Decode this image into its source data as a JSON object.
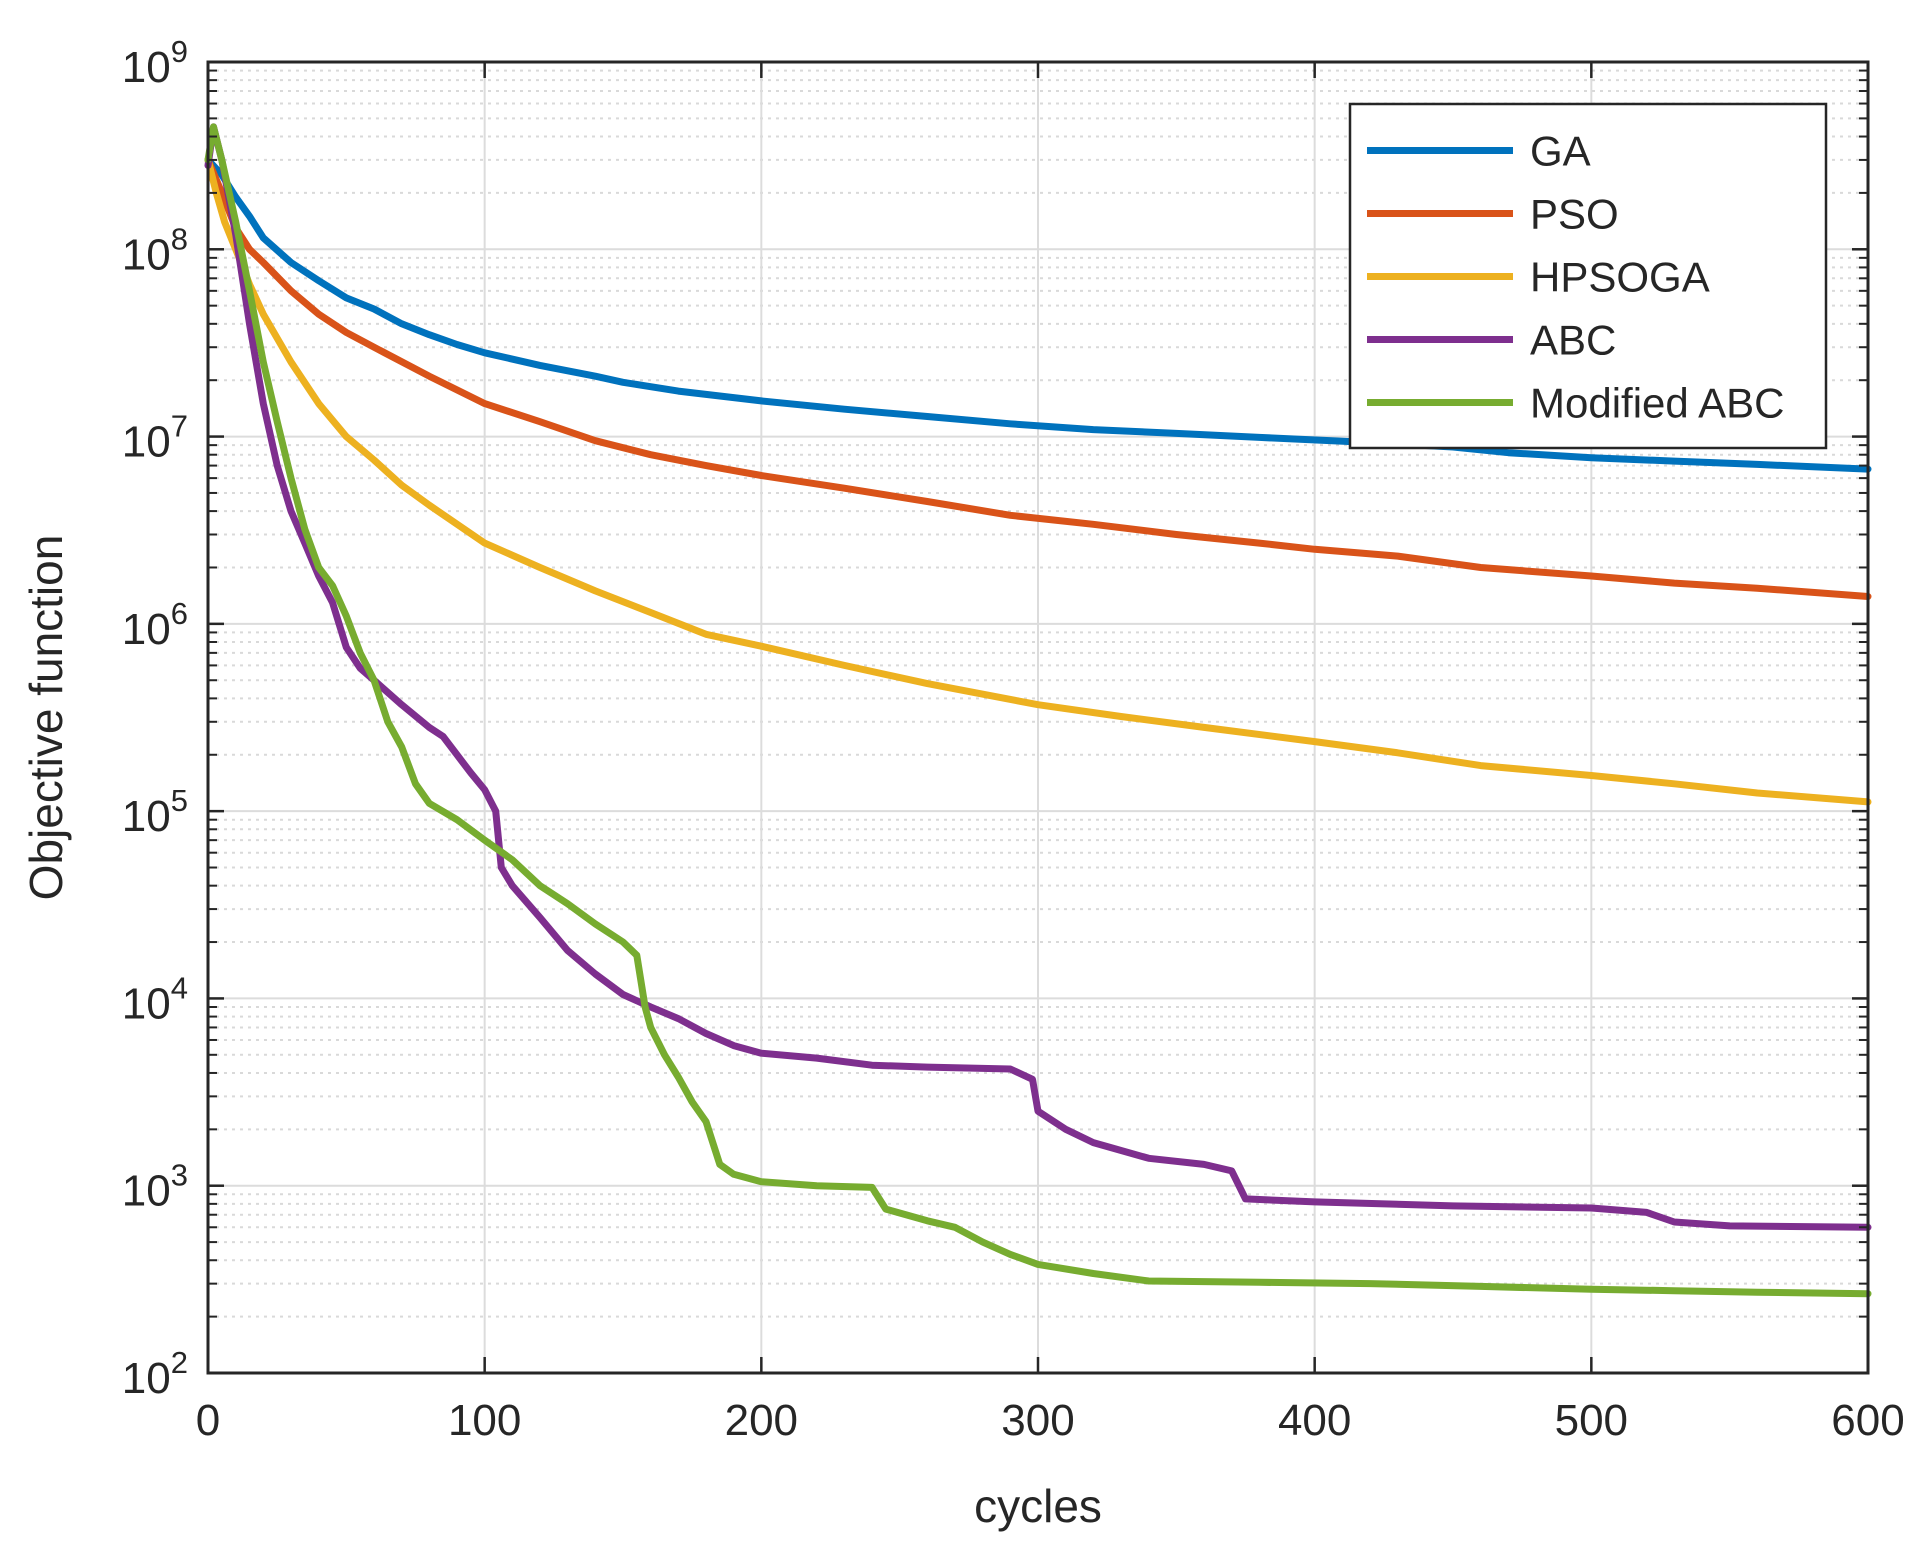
{
  "chart_data": {
    "type": "line",
    "title": "",
    "xlabel": "cycles",
    "ylabel": "Objective function",
    "xlim": [
      0,
      600
    ],
    "ylim": [
      100,
      1000000000
    ],
    "yscale": "log",
    "x_ticks": [
      0,
      100,
      200,
      300,
      400,
      500,
      600
    ],
    "x_tick_labels": [
      "0",
      "100",
      "200",
      "300",
      "400",
      "500",
      "600"
    ],
    "y_ticks": [
      {
        "value": 100,
        "base": "10",
        "exp": "2"
      },
      {
        "value": 1000,
        "base": "10",
        "exp": "3"
      },
      {
        "value": 10000,
        "base": "10",
        "exp": "4"
      },
      {
        "value": 100000,
        "base": "10",
        "exp": "5"
      },
      {
        "value": 1000000,
        "base": "10",
        "exp": "6"
      },
      {
        "value": 10000000,
        "base": "10",
        "exp": "7"
      },
      {
        "value": 100000000,
        "base": "10",
        "exp": "8"
      },
      {
        "value": 1000000000,
        "base": "10",
        "exp": "9"
      }
    ],
    "grid": true,
    "legend_position": "top-right",
    "series": [
      {
        "name": "GA",
        "color": "#0072BD",
        "points": [
          [
            0,
            300000000
          ],
          [
            5,
            250000000
          ],
          [
            10,
            190000000
          ],
          [
            15,
            150000000
          ],
          [
            20,
            115000000
          ],
          [
            30,
            85000000
          ],
          [
            40,
            68000000
          ],
          [
            50,
            55000000
          ],
          [
            60,
            48000000
          ],
          [
            70,
            40000000
          ],
          [
            80,
            35000000
          ],
          [
            90,
            31000000
          ],
          [
            100,
            28000000
          ],
          [
            120,
            24000000
          ],
          [
            140,
            21000000
          ],
          [
            150,
            19500000
          ],
          [
            170,
            17500000
          ],
          [
            200,
            15500000
          ],
          [
            230,
            14000000
          ],
          [
            260,
            12800000
          ],
          [
            290,
            11700000
          ],
          [
            320,
            10900000
          ],
          [
            350,
            10400000
          ],
          [
            380,
            9900000
          ],
          [
            420,
            9300000
          ],
          [
            450,
            8800000
          ],
          [
            470,
            8200000
          ],
          [
            500,
            7700000
          ],
          [
            530,
            7400000
          ],
          [
            560,
            7100000
          ],
          [
            600,
            6700000
          ]
        ]
      },
      {
        "name": "PSO",
        "color": "#D95319",
        "points": [
          [
            0,
            300000000
          ],
          [
            5,
            200000000
          ],
          [
            10,
            130000000
          ],
          [
            15,
            100000000
          ],
          [
            20,
            85000000
          ],
          [
            30,
            60000000
          ],
          [
            40,
            45000000
          ],
          [
            50,
            36000000
          ],
          [
            60,
            30000000
          ],
          [
            80,
            21000000
          ],
          [
            100,
            15000000
          ],
          [
            120,
            12000000
          ],
          [
            140,
            9500000
          ],
          [
            160,
            8000000
          ],
          [
            180,
            7000000
          ],
          [
            200,
            6200000
          ],
          [
            230,
            5300000
          ],
          [
            260,
            4500000
          ],
          [
            290,
            3800000
          ],
          [
            320,
            3400000
          ],
          [
            350,
            3000000
          ],
          [
            380,
            2700000
          ],
          [
            400,
            2500000
          ],
          [
            430,
            2300000
          ],
          [
            460,
            2000000
          ],
          [
            500,
            1800000
          ],
          [
            530,
            1650000
          ],
          [
            560,
            1550000
          ],
          [
            600,
            1400000
          ]
        ]
      },
      {
        "name": "HPSOGA",
        "color": "#EDB120",
        "points": [
          [
            0,
            300000000
          ],
          [
            3,
            200000000
          ],
          [
            6,
            140000000
          ],
          [
            10,
            100000000
          ],
          [
            15,
            65000000
          ],
          [
            20,
            45000000
          ],
          [
            30,
            25000000
          ],
          [
            40,
            15000000
          ],
          [
            50,
            10000000
          ],
          [
            60,
            7500000
          ],
          [
            70,
            5500000
          ],
          [
            80,
            4300000
          ],
          [
            100,
            2700000
          ],
          [
            120,
            2000000
          ],
          [
            140,
            1500000
          ],
          [
            160,
            1150000
          ],
          [
            180,
            880000
          ],
          [
            200,
            760000
          ],
          [
            230,
            600000
          ],
          [
            260,
            480000
          ],
          [
            300,
            370000
          ],
          [
            330,
            320000
          ],
          [
            360,
            280000
          ],
          [
            400,
            235000
          ],
          [
            430,
            205000
          ],
          [
            460,
            175000
          ],
          [
            500,
            155000
          ],
          [
            530,
            140000
          ],
          [
            560,
            125000
          ],
          [
            600,
            112000
          ]
        ]
      },
      {
        "name": "ABC",
        "color": "#7E2F8E",
        "points": [
          [
            0,
            280000000
          ],
          [
            2,
            450000000
          ],
          [
            5,
            300000000
          ],
          [
            10,
            120000000
          ],
          [
            15,
            40000000
          ],
          [
            20,
            15000000
          ],
          [
            25,
            7000000
          ],
          [
            30,
            4000000
          ],
          [
            35,
            2700000
          ],
          [
            40,
            1800000
          ],
          [
            45,
            1300000
          ],
          [
            50,
            750000
          ],
          [
            55,
            580000
          ],
          [
            60,
            500000
          ],
          [
            70,
            370000
          ],
          [
            80,
            280000
          ],
          [
            85,
            250000
          ],
          [
            90,
            200000
          ],
          [
            95,
            160000
          ],
          [
            100,
            130000
          ],
          [
            104,
            100000
          ],
          [
            106,
            50000
          ],
          [
            110,
            40000
          ],
          [
            120,
            27000
          ],
          [
            130,
            18000
          ],
          [
            140,
            13500
          ],
          [
            150,
            10500
          ],
          [
            160,
            9000
          ],
          [
            170,
            7800
          ],
          [
            180,
            6500
          ],
          [
            190,
            5600
          ],
          [
            200,
            5100
          ],
          [
            220,
            4800
          ],
          [
            240,
            4400
          ],
          [
            260,
            4300
          ],
          [
            290,
            4200
          ],
          [
            298,
            3700
          ],
          [
            300,
            2500
          ],
          [
            310,
            2000
          ],
          [
            320,
            1700
          ],
          [
            340,
            1400
          ],
          [
            360,
            1300
          ],
          [
            370,
            1200
          ],
          [
            375,
            850
          ],
          [
            400,
            820
          ],
          [
            450,
            780
          ],
          [
            500,
            760
          ],
          [
            520,
            720
          ],
          [
            530,
            640
          ],
          [
            550,
            610
          ],
          [
            600,
            600
          ]
        ]
      },
      {
        "name": "Modified ABC",
        "color": "#77AC30",
        "points": [
          [
            0,
            300000000
          ],
          [
            2,
            450000000
          ],
          [
            5,
            300000000
          ],
          [
            10,
            140000000
          ],
          [
            15,
            60000000
          ],
          [
            20,
            25000000
          ],
          [
            25,
            12000000
          ],
          [
            30,
            6000000
          ],
          [
            35,
            3200000
          ],
          [
            40,
            2000000
          ],
          [
            45,
            1600000
          ],
          [
            50,
            1100000
          ],
          [
            55,
            700000
          ],
          [
            60,
            500000
          ],
          [
            65,
            300000
          ],
          [
            70,
            220000
          ],
          [
            75,
            140000
          ],
          [
            80,
            110000
          ],
          [
            90,
            90000
          ],
          [
            100,
            70000
          ],
          [
            110,
            55000
          ],
          [
            120,
            40000
          ],
          [
            130,
            32000
          ],
          [
            140,
            25000
          ],
          [
            150,
            20000
          ],
          [
            155,
            17000
          ],
          [
            158,
            9000
          ],
          [
            160,
            7000
          ],
          [
            165,
            5000
          ],
          [
            170,
            3800
          ],
          [
            175,
            2800
          ],
          [
            180,
            2200
          ],
          [
            185,
            1300
          ],
          [
            190,
            1150
          ],
          [
            200,
            1050
          ],
          [
            220,
            1000
          ],
          [
            240,
            980
          ],
          [
            245,
            750
          ],
          [
            260,
            650
          ],
          [
            270,
            600
          ],
          [
            280,
            500
          ],
          [
            290,
            430
          ],
          [
            300,
            380
          ],
          [
            320,
            340
          ],
          [
            340,
            310
          ],
          [
            380,
            305
          ],
          [
            420,
            300
          ],
          [
            460,
            290
          ],
          [
            500,
            280
          ],
          [
            530,
            275
          ],
          [
            560,
            270
          ],
          [
            600,
            265
          ]
        ]
      }
    ]
  }
}
